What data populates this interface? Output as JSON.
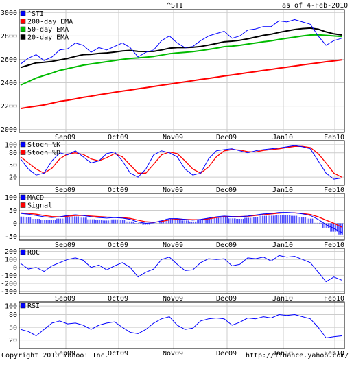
{
  "header": {
    "symbol": "^STI",
    "as_of_label": "as of",
    "as_of_date": "4-Feb-2010"
  },
  "footer": {
    "copyright": "Copyright 2010 Yahoo! Inc.",
    "url": "http://finance.yahoo.com/"
  },
  "colors": {
    "sti": "#0000ff",
    "ema200": "#ff0000",
    "ema50": "#00bb00",
    "ema20": "#000000",
    "stoch_k": "#0000ff",
    "stoch_d": "#ff0000",
    "macd": "#0000ff",
    "signal": "#ff0000",
    "roc": "#0000ff",
    "rsi": "#0000ff",
    "grid": "#cccccc",
    "frame": "#000000"
  },
  "chart_data": [
    {
      "type": "line",
      "panel": "price",
      "x_labels": [
        "Sep09",
        "Oct09",
        "Nov09",
        "Dec09",
        "Jan10",
        "Feb10"
      ],
      "yticks": [
        2000,
        2200,
        2400,
        2600,
        2800,
        3000
      ],
      "ylim": [
        1975,
        3025
      ],
      "grid": true,
      "legend": "top-left",
      "series": [
        {
          "name": "^STI",
          "values": [
            2560,
            2610,
            2640,
            2590,
            2620,
            2680,
            2690,
            2740,
            2720,
            2660,
            2700,
            2680,
            2710,
            2740,
            2700,
            2620,
            2660,
            2680,
            2760,
            2800,
            2740,
            2700,
            2710,
            2760,
            2800,
            2820,
            2840,
            2780,
            2800,
            2850,
            2860,
            2880,
            2880,
            2930,
            2920,
            2940,
            2920,
            2900,
            2800,
            2720,
            2760,
            2780
          ]
        },
        {
          "name": "200-day EMA",
          "values": [
            2180,
            2190,
            2200,
            2210,
            2225,
            2240,
            2250,
            2262,
            2275,
            2285,
            2297,
            2307,
            2318,
            2328,
            2338,
            2348,
            2358,
            2368,
            2378,
            2388,
            2398,
            2408,
            2418,
            2428,
            2437,
            2447,
            2457,
            2466,
            2476,
            2486,
            2495,
            2505,
            2514,
            2524,
            2533,
            2543,
            2552,
            2561,
            2570,
            2579,
            2587,
            2595
          ]
        },
        {
          "name": "50-day EMA",
          "values": [
            2380,
            2410,
            2440,
            2462,
            2483,
            2505,
            2520,
            2535,
            2550,
            2560,
            2570,
            2580,
            2590,
            2600,
            2608,
            2612,
            2618,
            2625,
            2636,
            2648,
            2655,
            2660,
            2666,
            2675,
            2685,
            2696,
            2708,
            2713,
            2720,
            2730,
            2740,
            2750,
            2758,
            2770,
            2780,
            2790,
            2800,
            2808,
            2810,
            2805,
            2800,
            2795
          ]
        },
        {
          "name": "20-day EMA",
          "values": [
            2530,
            2550,
            2570,
            2575,
            2582,
            2595,
            2608,
            2625,
            2640,
            2643,
            2650,
            2655,
            2662,
            2672,
            2676,
            2668,
            2667,
            2668,
            2680,
            2695,
            2700,
            2700,
            2703,
            2710,
            2722,
            2735,
            2750,
            2755,
            2763,
            2775,
            2790,
            2805,
            2815,
            2830,
            2843,
            2855,
            2863,
            2867,
            2858,
            2835,
            2818,
            2808
          ]
        }
      ]
    },
    {
      "type": "line",
      "panel": "stochastic",
      "x_labels": [
        "Sep09",
        "Oct09",
        "Nov09",
        "Dec09",
        "Jan10",
        "Feb10"
      ],
      "yticks": [
        20,
        50,
        80,
        100
      ],
      "ylim": [
        0,
        110
      ],
      "grid": true,
      "legend": "top-left",
      "series": [
        {
          "name": "Stoch %K",
          "values": [
            65,
            40,
            25,
            30,
            60,
            80,
            75,
            85,
            70,
            55,
            60,
            78,
            82,
            60,
            30,
            20,
            40,
            75,
            85,
            80,
            70,
            40,
            25,
            30,
            65,
            85,
            88,
            90,
            85,
            80,
            85,
            88,
            90,
            92,
            95,
            98,
            95,
            90,
            60,
            30,
            15,
            18
          ]
        },
        {
          "name": "Stoch %D",
          "values": [
            70,
            55,
            40,
            30,
            42,
            65,
            77,
            80,
            76,
            65,
            60,
            68,
            78,
            70,
            50,
            30,
            30,
            52,
            75,
            82,
            78,
            60,
            40,
            30,
            45,
            70,
            85,
            88,
            87,
            83,
            82,
            86,
            88,
            90,
            93,
            96,
            96,
            93,
            78,
            55,
            30,
            20
          ]
        }
      ]
    },
    {
      "type": "line",
      "panel": "macd",
      "x_labels": [
        "Sep09",
        "Oct09",
        "Nov09",
        "Dec09",
        "Jan10",
        "Feb10"
      ],
      "yticks": [
        -50,
        0,
        50,
        100
      ],
      "ylim": [
        -65,
        115
      ],
      "grid": true,
      "legend": "top-left",
      "series": [
        {
          "name": "MACD",
          "values": [
            38,
            35,
            30,
            25,
            22,
            25,
            30,
            33,
            30,
            25,
            22,
            20,
            22,
            20,
            15,
            5,
            0,
            2,
            10,
            18,
            18,
            15,
            12,
            15,
            20,
            25,
            28,
            26,
            25,
            28,
            32,
            36,
            38,
            42,
            42,
            40,
            36,
            30,
            15,
            -5,
            -20,
            -35
          ]
        },
        {
          "name": "Signal",
          "values": [
            40,
            38,
            35,
            30,
            26,
            25,
            27,
            30,
            30,
            28,
            26,
            24,
            23,
            22,
            19,
            12,
            6,
            4,
            7,
            13,
            16,
            15,
            14,
            14,
            17,
            22,
            25,
            26,
            26,
            27,
            30,
            33,
            36,
            39,
            41,
            40,
            38,
            34,
            25,
            12,
            0,
            -15
          ]
        }
      ]
    },
    {
      "type": "line",
      "panel": "roc",
      "x_labels": [
        "Sep09",
        "Oct09",
        "Nov09",
        "Dec09",
        "Jan10",
        "Feb10"
      ],
      "yticks": [
        -300,
        -200,
        -100,
        0,
        100,
        200
      ],
      "ylim": [
        -330,
        240
      ],
      "grid": true,
      "legend": "top-left",
      "series": [
        {
          "name": "ROC",
          "values": [
            50,
            -20,
            0,
            -50,
            20,
            60,
            100,
            120,
            90,
            0,
            30,
            -30,
            20,
            60,
            0,
            -120,
            -60,
            -20,
            100,
            130,
            40,
            -40,
            -30,
            60,
            110,
            100,
            110,
            20,
            40,
            120,
            110,
            130,
            80,
            150,
            130,
            140,
            100,
            60,
            -60,
            -180,
            -120,
            -160
          ]
        }
      ]
    },
    {
      "type": "line",
      "panel": "rsi",
      "x_labels": [
        "Sep09",
        "Oct09",
        "Nov09",
        "Dec09",
        "Jan10",
        "Feb10"
      ],
      "yticks": [
        20,
        50,
        80,
        100
      ],
      "ylim": [
        0,
        110
      ],
      "grid": true,
      "legend": "top-left",
      "series": [
        {
          "name": "RSI",
          "values": [
            45,
            40,
            30,
            45,
            60,
            65,
            58,
            60,
            55,
            45,
            55,
            60,
            63,
            50,
            38,
            35,
            45,
            60,
            70,
            75,
            55,
            45,
            48,
            65,
            70,
            72,
            70,
            55,
            62,
            72,
            70,
            75,
            72,
            80,
            78,
            80,
            75,
            70,
            50,
            25,
            28,
            30
          ]
        }
      ]
    }
  ]
}
